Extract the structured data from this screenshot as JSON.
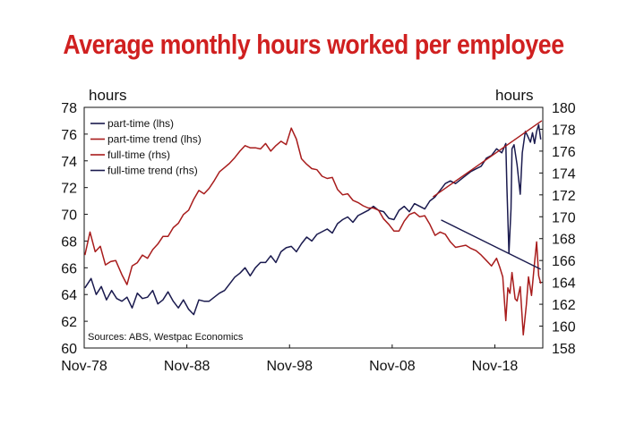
{
  "chart_data": {
    "type": "line",
    "title": "Average monthly hours worked per employee",
    "ylabel_left": "hours",
    "ylabel_right": "hours",
    "x_ticks": [
      "Nov-78",
      "Nov-88",
      "Nov-98",
      "Nov-08",
      "Nov-18"
    ],
    "ylim_left": [
      60,
      78
    ],
    "ylim_right": [
      158,
      180
    ],
    "left_ticks": [
      60,
      62,
      64,
      66,
      68,
      70,
      72,
      74,
      76,
      78
    ],
    "right_ticks": [
      158,
      160,
      162,
      164,
      166,
      168,
      170,
      172,
      174,
      176,
      178,
      180
    ],
    "x_range": [
      1978.83,
      2023.5
    ],
    "source": "Sources: ABS, Westpac Economics",
    "legend": {
      "placement": "top-left",
      "entries": [
        "part-time (lhs)",
        "part-time trend (lhs)",
        "full-time (rhs)",
        "full-time trend (rhs)"
      ]
    },
    "colors": {
      "navy": "#1a1a4e",
      "red": "#a81c1c"
    },
    "series": [
      {
        "name": "part-time (lhs)",
        "axis": "left",
        "color": "#1a1a4e",
        "x": [
          1978.9,
          1979.5,
          1980.0,
          1980.5,
          1981.0,
          1981.5,
          1982.0,
          1982.5,
          1983.0,
          1983.5,
          1984.0,
          1984.5,
          1985.0,
          1985.5,
          1986.0,
          1986.5,
          1987.0,
          1987.5,
          1988.0,
          1988.5,
          1989.0,
          1989.5,
          1990.0,
          1990.5,
          1991.0,
          1991.5,
          1992.0,
          1992.5,
          1993.0,
          1993.5,
          1994.0,
          1994.5,
          1995.0,
          1995.5,
          1996.0,
          1996.5,
          1997.0,
          1997.5,
          1998.0,
          1998.5,
          1999.0,
          1999.5,
          2000.0,
          2000.5,
          2001.0,
          2001.5,
          2002.0,
          2002.5,
          2003.0,
          2003.5,
          2004.0,
          2004.5,
          2005.0,
          2005.5,
          2006.0,
          2006.5,
          2007.0,
          2007.5,
          2008.0,
          2008.5,
          2009.0,
          2009.5,
          2010.0,
          2010.5,
          2011.0,
          2011.5,
          2012.0,
          2012.5,
          2013.0,
          2013.5,
          2014.0,
          2014.5,
          2015.0,
          2015.5,
          2016.0,
          2016.5,
          2017.0,
          2017.5,
          2018.0,
          2018.5,
          2019.0,
          2019.5,
          2019.9,
          2020.0,
          2020.2,
          2020.4,
          2020.5,
          2020.7,
          2021.0,
          2021.3,
          2021.5,
          2021.8,
          2022.0,
          2022.3,
          2022.5,
          2022.7,
          2022.9,
          2023.1,
          2023.3
        ],
        "values": [
          64.5,
          65.2,
          64.0,
          64.6,
          63.6,
          64.3,
          63.7,
          63.5,
          63.8,
          63.0,
          64.1,
          63.7,
          63.8,
          64.3,
          63.3,
          63.6,
          64.2,
          63.5,
          63.0,
          63.6,
          62.9,
          62.5,
          63.6,
          63.5,
          63.5,
          63.8,
          64.1,
          64.3,
          64.8,
          65.3,
          65.6,
          66.0,
          65.4,
          66.0,
          66.4,
          66.4,
          66.9,
          66.4,
          67.2,
          67.5,
          67.6,
          67.2,
          67.8,
          68.3,
          68.0,
          68.5,
          68.7,
          68.9,
          68.6,
          69.3,
          69.6,
          69.8,
          69.4,
          69.9,
          70.1,
          70.3,
          70.6,
          70.3,
          70.2,
          69.7,
          69.6,
          70.3,
          70.6,
          70.2,
          70.8,
          70.6,
          70.4,
          71.0,
          71.3,
          71.8,
          72.3,
          72.5,
          72.3,
          72.6,
          72.9,
          73.2,
          73.4,
          73.6,
          74.2,
          74.4,
          74.9,
          74.6,
          75.3,
          72.1,
          67.1,
          70.4,
          74.9,
          75.2,
          73.7,
          71.5,
          74.6,
          76.2,
          75.9,
          75.4,
          76.1,
          75.3,
          76.2,
          76.7,
          75.6
        ]
      },
      {
        "name": "part-time trend (lhs)",
        "axis": "left",
        "color": "#a81c1c",
        "x": [
          2012.8,
          2023.4
        ],
        "values": [
          71.3,
          77.0
        ]
      },
      {
        "name": "full-time (rhs)",
        "axis": "right",
        "color": "#a81c1c",
        "x": [
          1978.9,
          1979.4,
          1979.9,
          1980.4,
          1980.9,
          1981.4,
          1981.9,
          1982.5,
          1983.0,
          1983.5,
          1984.0,
          1984.5,
          1985.0,
          1985.5,
          1986.0,
          1986.5,
          1987.0,
          1987.5,
          1988.0,
          1988.5,
          1989.0,
          1989.5,
          1990.0,
          1990.5,
          1991.0,
          1991.5,
          1992.0,
          1992.5,
          1993.0,
          1993.5,
          1994.0,
          1994.5,
          1995.0,
          1995.5,
          1996.0,
          1996.5,
          1997.0,
          1997.5,
          1998.0,
          1998.5,
          1999.0,
          1999.5,
          2000.0,
          2000.5,
          2001.0,
          2001.5,
          2002.0,
          2002.5,
          2003.0,
          2003.5,
          2004.0,
          2004.5,
          2005.0,
          2005.5,
          2006.0,
          2006.5,
          2007.0,
          2007.5,
          2008.0,
          2008.5,
          2009.0,
          2009.5,
          2010.0,
          2010.5,
          2011.0,
          2011.5,
          2012.0,
          2012.5,
          2013.0,
          2013.5,
          2014.0,
          2014.5,
          2015.0,
          2015.5,
          2016.0,
          2016.5,
          2017.0,
          2017.5,
          2018.0,
          2018.5,
          2019.0,
          2019.3,
          2019.6,
          2019.9,
          2020.1,
          2020.3,
          2020.5,
          2020.8,
          2021.0,
          2021.3,
          2021.6,
          2021.9,
          2022.1,
          2022.4,
          2022.7,
          2022.9,
          2023.1,
          2023.3
        ],
        "values": [
          166.5,
          168.6,
          166.8,
          167.3,
          165.6,
          165.9,
          166.0,
          164.7,
          163.8,
          165.5,
          165.8,
          166.5,
          166.2,
          167.0,
          167.5,
          168.2,
          168.2,
          169.0,
          169.4,
          170.2,
          170.6,
          171.6,
          172.4,
          172.1,
          172.6,
          173.3,
          174.1,
          174.5,
          174.9,
          175.4,
          176.0,
          176.5,
          176.3,
          176.3,
          176.2,
          176.7,
          176.0,
          176.5,
          176.9,
          176.6,
          178.1,
          177.1,
          175.3,
          174.8,
          174.4,
          174.3,
          173.7,
          173.5,
          173.6,
          172.5,
          172.0,
          172.1,
          171.5,
          171.3,
          171.0,
          170.8,
          170.8,
          170.6,
          169.8,
          169.3,
          168.7,
          168.7,
          169.6,
          170.2,
          170.4,
          170.0,
          170.1,
          169.3,
          168.3,
          168.6,
          168.4,
          167.7,
          167.2,
          167.3,
          167.4,
          167.1,
          166.9,
          166.5,
          166.0,
          165.5,
          166.2,
          165.4,
          164.5,
          160.5,
          163.5,
          163.0,
          164.9,
          162.5,
          162.3,
          163.6,
          159.2,
          162.0,
          164.5,
          162.8,
          165.8,
          167.7,
          164.6,
          163.9
        ]
      },
      {
        "name": "full-time trend (rhs)",
        "axis": "right",
        "color": "#1a1a4e",
        "x": [
          2013.6,
          2023.3
        ],
        "values": [
          169.7,
          165.2
        ]
      }
    ]
  }
}
